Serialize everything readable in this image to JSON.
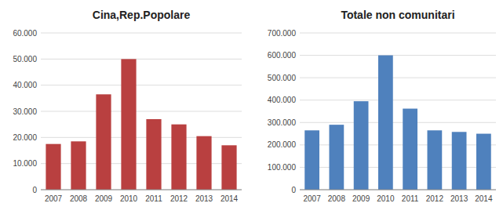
{
  "chart_data": [
    {
      "type": "bar",
      "title": "Cina,Rep.Popolare",
      "categories": [
        "2007",
        "2008",
        "2009",
        "2010",
        "2011",
        "2012",
        "2013",
        "2014"
      ],
      "values": [
        17500,
        18500,
        36500,
        50000,
        27000,
        25000,
        20500,
        17000
      ],
      "color": "#b94040",
      "ylim": [
        0,
        60000
      ],
      "yticks": [
        0,
        {
          "value": 10000,
          "label": "10.000"
        },
        {
          "value": 20000,
          "label": "20.000"
        },
        {
          "value": 30000,
          "label": "30.000"
        },
        {
          "value": 40000,
          "label": "40.000"
        },
        {
          "value": 50000,
          "label": "50.000"
        },
        {
          "value": 60000,
          "label": "60.000"
        }
      ],
      "grid": true
    },
    {
      "type": "bar",
      "title": "Totale non comunitari",
      "categories": [
        "2007",
        "2008",
        "2009",
        "2010",
        "2011",
        "2012",
        "2013",
        "2014"
      ],
      "values": [
        265000,
        290000,
        395000,
        600000,
        362000,
        265000,
        258000,
        250000
      ],
      "color": "#4f81bd",
      "ylim": [
        0,
        700000
      ],
      "yticks": [
        0,
        {
          "value": 100000,
          "label": "100.000"
        },
        {
          "value": 200000,
          "label": "200.000"
        },
        {
          "value": 300000,
          "label": "300.000"
        },
        {
          "value": 400000,
          "label": "400.000"
        },
        {
          "value": 500000,
          "label": "500.000"
        },
        {
          "value": 600000,
          "label": "600.000"
        },
        {
          "value": 700000,
          "label": "700.000"
        }
      ],
      "grid": true
    }
  ]
}
